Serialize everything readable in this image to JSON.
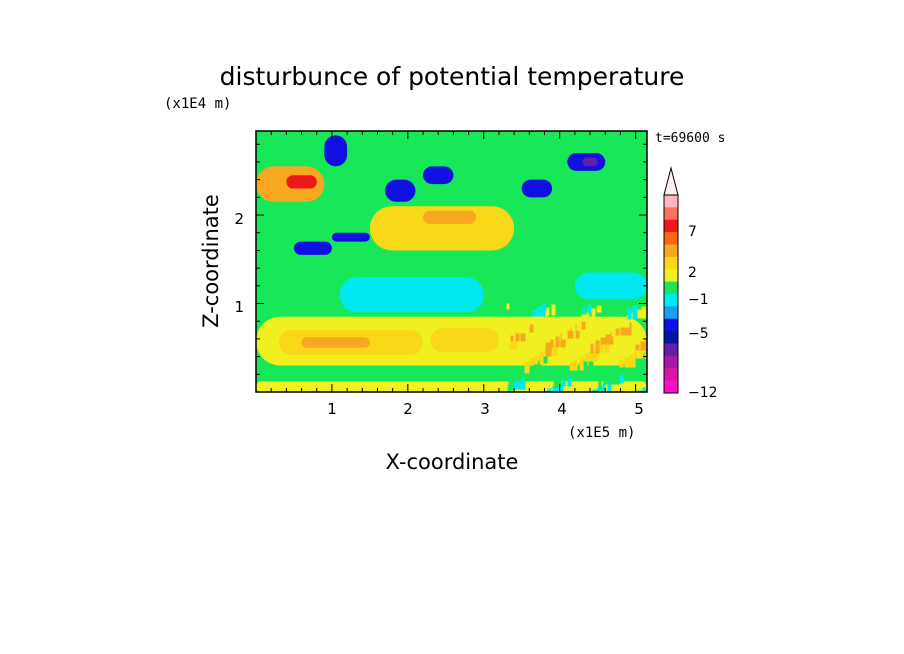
{
  "chart_data": {
    "type": "heatmap",
    "title": "disturbunce of potential temperature",
    "xlabel": "X-coordinate",
    "ylabel": "Z-coordinate",
    "x_unit": "(x1E5 m)",
    "y_unit": "(x1E4 m)",
    "time_label": "t=69600 s",
    "xlim": [
      0,
      5.15
    ],
    "ylim": [
      0,
      2.95
    ],
    "x_ticks": [
      "1",
      "2",
      "3",
      "4",
      "5"
    ],
    "y_ticks": [
      "1",
      "2"
    ],
    "colorbar": {
      "labels": [
        "7",
        "2",
        "-1",
        "-5",
        "-12"
      ],
      "top_arrow": true,
      "colors": [
        "#ffb6c1",
        "#ff7060",
        "#ef1818",
        "#f86810",
        "#f8a820",
        "#f8d818",
        "#f0f020",
        "#18e858",
        "#00e8f0",
        "#18a0f8",
        "#1010e0",
        "#0018a0",
        "#6020a8",
        "#a818a8",
        "#d818a0",
        "#ff10c8"
      ]
    },
    "regions": [
      {
        "x": [
          0.0,
          5.15
        ],
        "z": [
          0.0,
          2.95
        ],
        "level": "green"
      },
      {
        "x": [
          0.0,
          5.15
        ],
        "z": [
          0.0,
          0.12
        ],
        "level": "yellow"
      },
      {
        "x": [
          0.0,
          3.6
        ],
        "z": [
          0.12,
          0.3
        ],
        "level": "green"
      },
      {
        "x": [
          0.0,
          5.15
        ],
        "z": [
          0.3,
          0.85
        ],
        "level": "yellow"
      },
      {
        "x": [
          0.3,
          2.2
        ],
        "z": [
          0.42,
          0.7
        ],
        "level": "light-orange"
      },
      {
        "x": [
          2.3,
          3.2
        ],
        "z": [
          0.45,
          0.72
        ],
        "level": "light-orange"
      },
      {
        "x": [
          0.6,
          1.5
        ],
        "z": [
          0.5,
          0.62
        ],
        "level": "orange"
      },
      {
        "x": [
          1.1,
          3.0
        ],
        "z": [
          0.9,
          1.3
        ],
        "level": "cyan"
      },
      {
        "x": [
          4.2,
          5.15
        ],
        "z": [
          1.05,
          1.35
        ],
        "level": "cyan"
      },
      {
        "x": [
          0.0,
          0.9
        ],
        "z": [
          2.15,
          2.55
        ],
        "level": "orange"
      },
      {
        "x": [
          0.4,
          0.8
        ],
        "z": [
          2.3,
          2.45
        ],
        "level": "red"
      },
      {
        "x": [
          1.5,
          3.4
        ],
        "z": [
          1.6,
          2.1
        ],
        "level": "light-orange"
      },
      {
        "x": [
          2.2,
          2.9
        ],
        "z": [
          1.9,
          2.05
        ],
        "level": "orange"
      },
      {
        "x": [
          0.5,
          1.0
        ],
        "z": [
          1.55,
          1.7
        ],
        "level": "dark-blue"
      },
      {
        "x": [
          1.0,
          1.5
        ],
        "z": [
          1.7,
          1.8
        ],
        "level": "dark-blue"
      },
      {
        "x": [
          0.9,
          1.2
        ],
        "z": [
          2.55,
          2.9
        ],
        "level": "dark-blue"
      },
      {
        "x": [
          1.7,
          2.1
        ],
        "z": [
          2.15,
          2.4
        ],
        "level": "dark-blue"
      },
      {
        "x": [
          2.2,
          2.6
        ],
        "z": [
          2.35,
          2.55
        ],
        "level": "dark-blue"
      },
      {
        "x": [
          3.5,
          3.9
        ],
        "z": [
          2.2,
          2.4
        ],
        "level": "dark-blue"
      },
      {
        "x": [
          4.1,
          4.6
        ],
        "z": [
          2.5,
          2.7
        ],
        "level": "dark-blue"
      },
      {
        "x": [
          4.3,
          4.5
        ],
        "z": [
          2.55,
          2.65
        ],
        "level": "purple"
      },
      {
        "x": [
          3.3,
          5.15
        ],
        "z": [
          0.0,
          1.0
        ],
        "level": "noisy"
      }
    ]
  }
}
